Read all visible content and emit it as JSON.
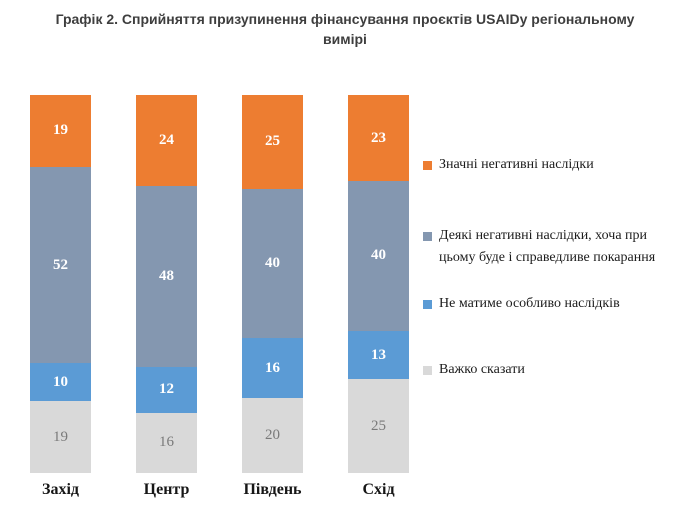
{
  "chart_data": {
    "type": "bar",
    "variant": "stacked-100-percent-column",
    "title": "Графік 2. Сприйняття призупинення фінансування проєктів USAIDу регіональному вимірі",
    "categories": [
      "Захід",
      "Центр",
      "Південь",
      "Схід"
    ],
    "series": [
      {
        "name": "Значні негативні наслідки",
        "color": "#ED7D31",
        "values": [
          19,
          24,
          25,
          23
        ],
        "label_color": "#FFFFFF",
        "label_weight": "bold"
      },
      {
        "name": "Деякі негативні наслідки, хоча при цьому буде і справедливе покарання",
        "color": "#8497B0",
        "values": [
          52,
          48,
          40,
          40
        ],
        "label_color": "#FFFFFF",
        "label_weight": "bold"
      },
      {
        "name": "Не матиме особливо наслідків",
        "color": "#5B9BD5",
        "values": [
          10,
          12,
          16,
          13
        ],
        "label_color": "#FFFFFF",
        "label_weight": "bold"
      },
      {
        "name": "Важко сказати",
        "color": "#D9D9D9",
        "values": [
          19,
          16,
          20,
          25
        ],
        "label_color": "#7A7A7A",
        "label_weight": "normal"
      }
    ],
    "legend_position": "right",
    "axes_visible": false,
    "grid": false,
    "ylim": [
      0,
      100
    ]
  }
}
